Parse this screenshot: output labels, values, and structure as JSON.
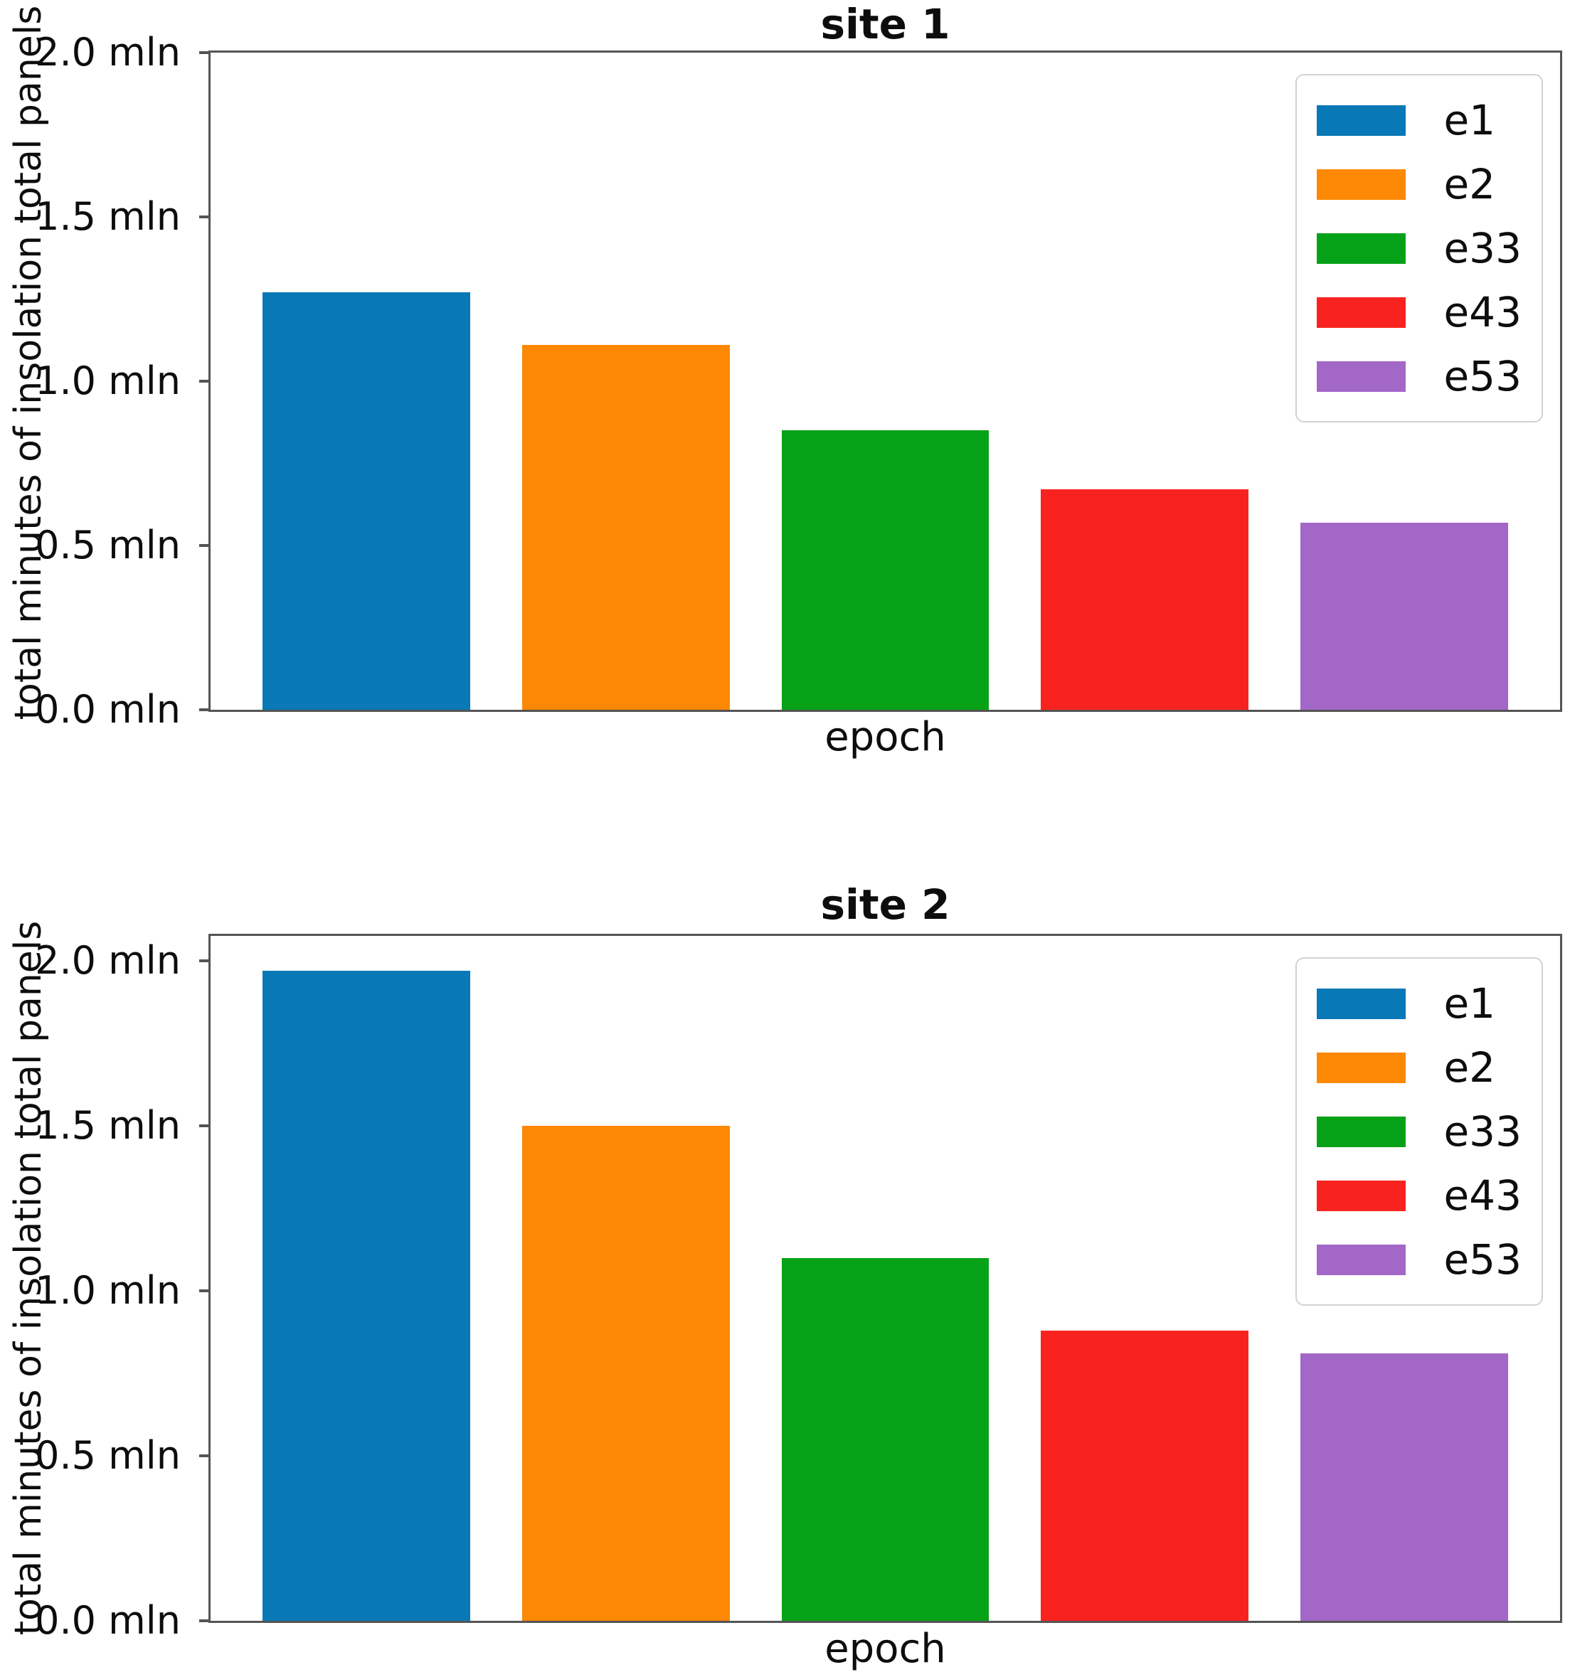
{
  "page": {
    "background": "#ffffff"
  },
  "axes_style": {
    "spine_color": "#545454",
    "tick_color": "#545454",
    "text_color": "#0d0d0d",
    "legend_border": "#d2d2d2",
    "legend_background": "#ffffff"
  },
  "chart_data": [
    {
      "type": "bar",
      "title": "site 1",
      "xlabel": "epoch",
      "ylabel": "total minutes of insolation total panels",
      "unit": "mln",
      "categories": [
        "e1",
        "e2",
        "e33",
        "e43",
        "e53"
      ],
      "values": [
        1.27,
        1.11,
        0.85,
        0.67,
        0.57
      ],
      "colors": [
        "#0878b6",
        "#fc8804",
        "#05a116",
        "#f8231f",
        "#a367c7"
      ],
      "ylim": [
        0,
        2.0
      ],
      "yticks": [
        {
          "value": 0.0,
          "label": "0.0 mln"
        },
        {
          "value": 0.5,
          "label": "0.5 mln"
        },
        {
          "value": 1.0,
          "label": "1.0 mln"
        },
        {
          "value": 1.5,
          "label": "1.5 mln"
        },
        {
          "value": 2.0,
          "label": "2.0 mln"
        }
      ],
      "legend_position": "upper right",
      "grid": false
    },
    {
      "type": "bar",
      "title": "site 2",
      "xlabel": "epoch",
      "ylabel": "total minutes of insolation total panels",
      "unit": "mln",
      "categories": [
        "e1",
        "e2",
        "e33",
        "e43",
        "e53"
      ],
      "values": [
        1.97,
        1.5,
        1.1,
        0.88,
        0.81
      ],
      "colors": [
        "#0878b6",
        "#fc8804",
        "#05a116",
        "#f8231f",
        "#a367c7"
      ],
      "ylim": [
        0,
        2.075
      ],
      "yticks": [
        {
          "value": 0.0,
          "label": "0.0 mln"
        },
        {
          "value": 0.5,
          "label": "0.5 mln"
        },
        {
          "value": 1.0,
          "label": "1.0 mln"
        },
        {
          "value": 1.5,
          "label": "1.5 mln"
        },
        {
          "value": 2.0,
          "label": "2.0 mln"
        }
      ],
      "legend_position": "upper right",
      "grid": false
    }
  ]
}
